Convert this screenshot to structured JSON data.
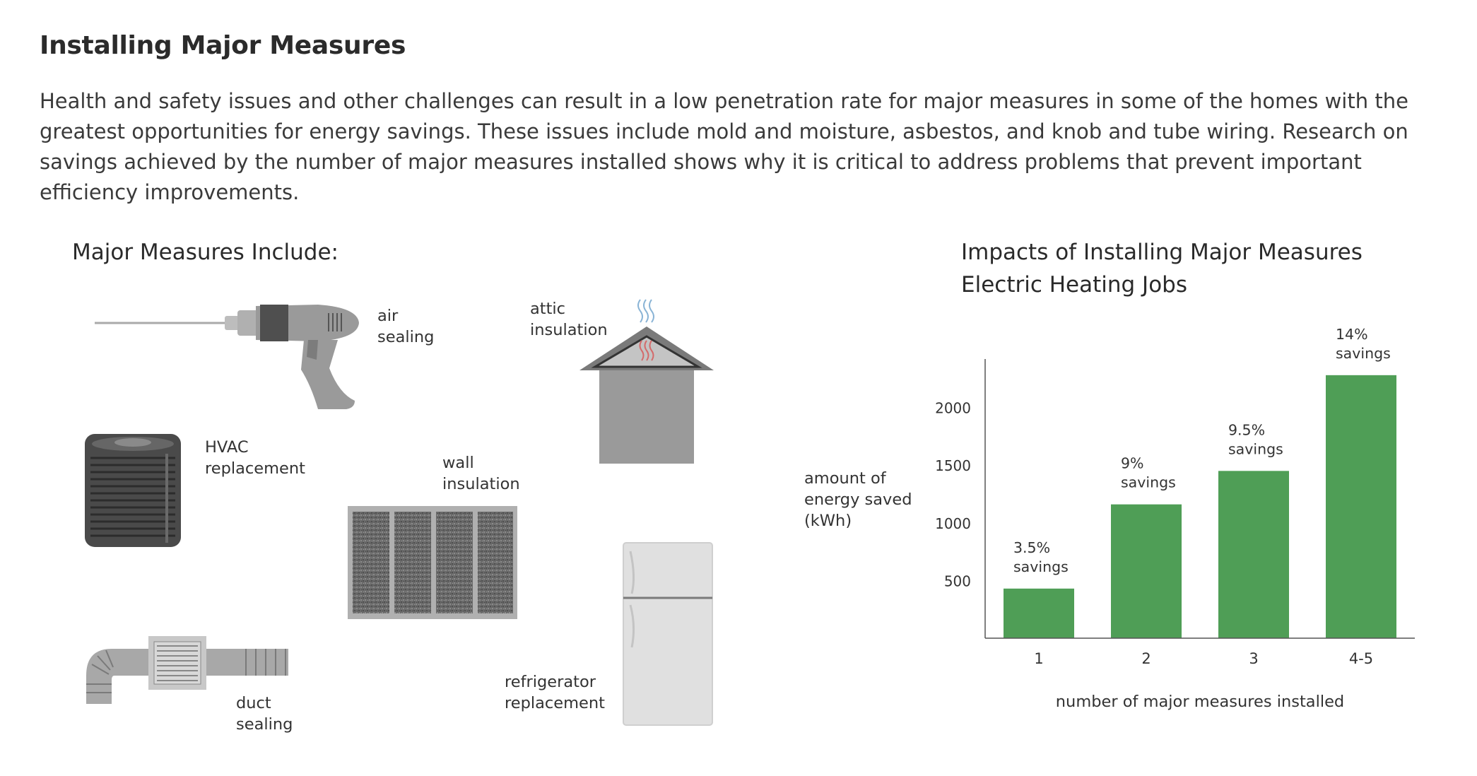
{
  "page": {
    "title": "Installing Major Measures",
    "intro": "Health and safety issues and other challenges can result in a low penetration rate for major measures in some of the homes with the greatest opportunities for energy savings. These issues include mold and moisture, asbestos, and knob and tube wiring.  Research on savings achieved by the number of major measures installed shows why it is critical to address problems that prevent important efficiency improvements."
  },
  "measures": {
    "heading": "Major Measures Include:",
    "items": {
      "air_sealing": {
        "line1": "air",
        "line2": "sealing",
        "icon": "heat-gun-icon"
      },
      "attic_insulation": {
        "line1": "attic",
        "line2": "insulation",
        "icon": "house-attic-icon"
      },
      "hvac_replacement": {
        "line1": "HVAC",
        "line2": "replacement",
        "icon": "ac-unit-icon"
      },
      "wall_insulation": {
        "line1": "wall",
        "line2": "insulation",
        "icon": "insulation-panel-icon"
      },
      "duct_sealing": {
        "line1": "duct",
        "line2": "sealing",
        "icon": "duct-icon"
      },
      "refrigerator_replacement": {
        "line1": "refrigerator",
        "line2": "replacement",
        "icon": "refrigerator-icon"
      }
    }
  },
  "colors": {
    "bar": "#4f9e56",
    "axis": "#555555",
    "illustration_gray": "#9a9a9a",
    "illustration_dark": "#555555",
    "heat_blue": "#8ab4d6",
    "heat_red": "#d46a6a"
  },
  "chart_data": {
    "type": "bar",
    "title": "Impacts of Installing Major Measures",
    "subtitle": "Electric Heating Jobs",
    "ylabel_lines": [
      "amount of",
      "energy saved",
      "(kWh)"
    ],
    "xlabel": "number of major measures installed",
    "categories": [
      "1",
      "2",
      "3",
      "4-5"
    ],
    "values": [
      430,
      1160,
      1450,
      2280
    ],
    "annotations": [
      {
        "pct": "3.5%",
        "word": "savings"
      },
      {
        "pct": "9%",
        "word": "savings"
      },
      {
        "pct": "9.5%",
        "word": "savings"
      },
      {
        "pct": "14%",
        "word": "savings"
      }
    ],
    "yticks": [
      500,
      1000,
      1500,
      2000
    ],
    "ylim": [
      0,
      2420
    ],
    "grid": false,
    "legend": "none"
  }
}
